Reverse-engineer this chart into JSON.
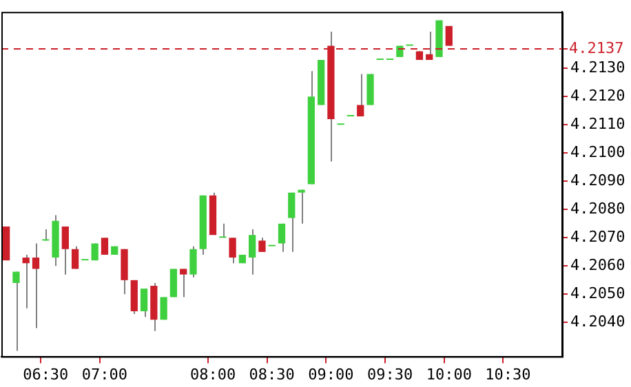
{
  "chart_data": {
    "type": "candlestick",
    "categories": [
      null,
      null,
      null,
      null,
      "06:30",
      null,
      null,
      null,
      null,
      null,
      "07:00",
      null,
      null,
      null,
      null,
      null,
      null,
      null,
      null,
      null,
      null,
      "08:00",
      null,
      null,
      null,
      null,
      null,
      "08:30",
      null,
      null,
      null,
      null,
      null,
      "09:00",
      null,
      null,
      null,
      null,
      null,
      "09:30",
      null,
      null,
      null,
      null,
      null,
      "10:00",
      null,
      null,
      null,
      null,
      null,
      "10:30",
      null,
      null,
      null,
      null,
      null
    ],
    "ohlc": [
      [
        4.2074,
        4.2074,
        4.2062,
        4.2062
      ],
      [
        4.2054,
        4.2058,
        4.203,
        4.2058
      ],
      [
        4.2063,
        4.2064,
        4.2045,
        4.2061
      ],
      [
        4.2063,
        4.2068,
        4.2038,
        4.2059
      ],
      [
        4.2069,
        4.2073,
        4.2069,
        4.2069
      ],
      [
        4.2063,
        4.2078,
        4.206,
        4.2076
      ],
      [
        4.2074,
        4.2074,
        4.2057,
        4.2066
      ],
      [
        4.2066,
        4.2067,
        4.2059,
        4.2059
      ],
      [
        4.2062,
        4.2062,
        4.2062,
        4.2062
      ],
      [
        4.2062,
        4.2068,
        4.2062,
        4.2068
      ],
      [
        4.207,
        4.207,
        4.2064,
        4.2064
      ],
      [
        4.2064,
        4.2067,
        4.2064,
        4.2067
      ],
      [
        4.2066,
        4.2066,
        4.205,
        4.2055
      ],
      [
        4.2055,
        4.2055,
        4.2043,
        4.2044
      ],
      [
        4.2044,
        4.2052,
        4.2042,
        4.2052
      ],
      [
        4.2053,
        4.2054,
        4.2037,
        4.2041
      ],
      [
        4.2041,
        4.2049,
        4.2041,
        4.2049
      ],
      [
        4.2049,
        4.2059,
        4.2049,
        4.2059
      ],
      [
        4.2059,
        4.2059,
        4.2049,
        4.2057
      ],
      [
        4.2057,
        4.2067,
        4.2056,
        4.2066
      ],
      [
        4.2066,
        4.2085,
        4.2064,
        4.2085
      ],
      [
        4.2085,
        4.2086,
        4.2071,
        4.2071
      ],
      [
        4.207,
        4.2075,
        4.207,
        4.207
      ],
      [
        4.207,
        4.207,
        4.2061,
        4.2063
      ],
      [
        4.2061,
        4.2064,
        4.2061,
        4.2064
      ],
      [
        4.2063,
        4.2073,
        4.2057,
        4.2071
      ],
      [
        4.2069,
        4.207,
        4.2065,
        4.2065
      ],
      [
        4.2067,
        4.2067,
        4.2067,
        4.2067
      ],
      [
        4.2068,
        4.2075,
        4.2065,
        4.2075
      ],
      [
        4.2077,
        4.2086,
        4.2065,
        4.2086
      ],
      [
        4.2086,
        4.2087,
        4.2075,
        4.2087
      ],
      [
        4.2089,
        4.2129,
        4.2089,
        4.212
      ],
      [
        4.2117,
        4.2133,
        4.2117,
        4.2133
      ],
      [
        4.2138,
        4.2143,
        4.2097,
        4.2112
      ],
      [
        4.211,
        4.211,
        4.211,
        4.211
      ],
      [
        4.2113,
        4.2113,
        4.2113,
        4.2113
      ],
      [
        4.2117,
        4.2128,
        4.2113,
        4.2113
      ],
      [
        4.2117,
        4.2128,
        4.2117,
        4.2128
      ],
      [
        4.2133,
        4.2133,
        4.2133,
        4.2133
      ],
      [
        4.2133,
        4.2133,
        4.2133,
        4.2133
      ],
      [
        4.2134,
        4.2138,
        4.2134,
        4.2138
      ],
      [
        4.2138,
        4.2138,
        4.2138,
        4.2138
      ],
      [
        4.2136,
        4.2136,
        4.2133,
        4.2133
      ],
      [
        4.2135,
        4.2143,
        4.2133,
        4.2133
      ],
      [
        4.2134,
        4.2147,
        4.2134,
        4.2147
      ],
      [
        4.2145,
        4.2145,
        4.2138,
        4.2138
      ],
      null,
      null,
      null,
      null,
      null,
      null,
      null,
      null,
      null,
      null,
      null
    ],
    "colors": [
      "#cc1f2a",
      "#3fd03f",
      "#cc1f2a",
      "#cc1f2a",
      "#3fd03f",
      "#3fd03f",
      "#cc1f2a",
      "#cc1f2a",
      "#3fd03f",
      "#3fd03f",
      "#cc1f2a",
      "#3fd03f",
      "#cc1f2a",
      "#cc1f2a",
      "#3fd03f",
      "#cc1f2a",
      "#3fd03f",
      "#3fd03f",
      "#cc1f2a",
      "#3fd03f",
      "#3fd03f",
      "#cc1f2a",
      "#3fd03f",
      "#cc1f2a",
      "#3fd03f",
      "#3fd03f",
      "#cc1f2a",
      "#3fd03f",
      "#3fd03f",
      "#3fd03f",
      "#3fd03f",
      "#3fd03f",
      "#3fd03f",
      "#cc1f2a",
      "#3fd03f",
      "#3fd03f",
      "#cc1f2a",
      "#3fd03f",
      "#3fd03f",
      "#3fd03f",
      "#3fd03f",
      "#3fd03f",
      "#cc1f2a",
      "#cc1f2a",
      "#3fd03f",
      "#cc1f2a",
      null,
      null,
      null,
      null,
      null,
      null,
      null,
      null,
      null,
      null,
      null
    ],
    "ylim": [
      4.2028,
      4.215
    ],
    "yticks": [
      {
        "value": 4.204,
        "label": "4.2040"
      },
      {
        "value": 4.205,
        "label": "4.2050"
      },
      {
        "value": 4.206,
        "label": "4.2060"
      },
      {
        "value": 4.207,
        "label": "4.2070"
      },
      {
        "value": 4.208,
        "label": "4.2080"
      },
      {
        "value": 4.209,
        "label": "4.2090"
      },
      {
        "value": 4.21,
        "label": "4.2100"
      },
      {
        "value": 4.211,
        "label": "4.2110"
      },
      {
        "value": 4.212,
        "label": "4.2120"
      },
      {
        "value": 4.213,
        "label": "4.2130"
      }
    ],
    "ref_lines": [
      {
        "axis": "y",
        "value": 4.2137,
        "label": "4.2137",
        "color": "#cc1f2a",
        "line_style": "dashed"
      }
    ],
    "grid": false,
    "legend": false
  }
}
